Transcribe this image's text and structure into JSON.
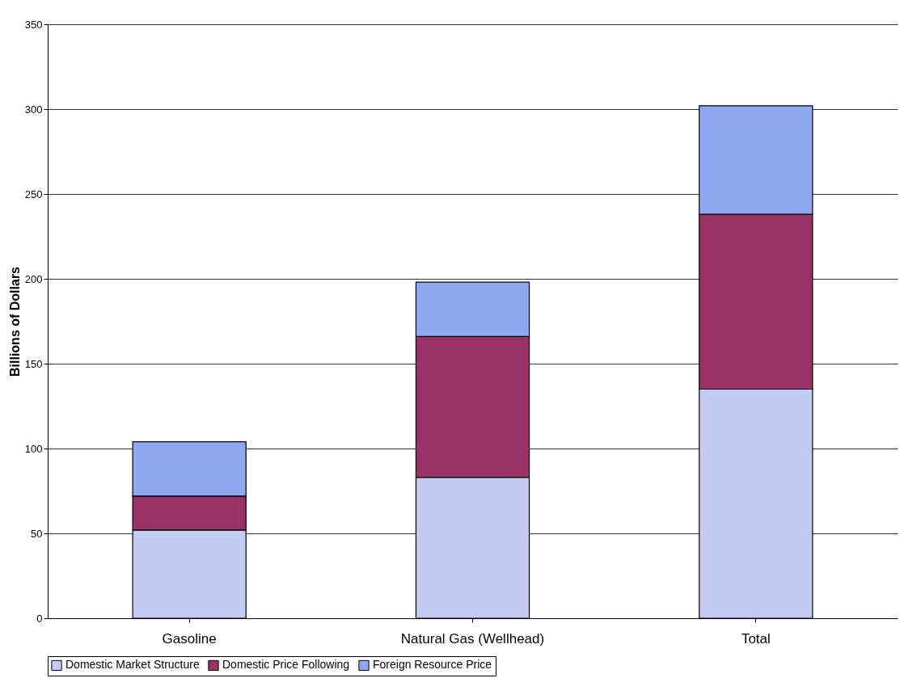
{
  "chart_data": {
    "type": "bar",
    "ylabel": "Billions of Dollars",
    "categories": [
      "Gasoline",
      "Natural Gas (Wellhead)",
      "Total"
    ],
    "stacked": true,
    "series": [
      {
        "name": "Domestic Market Structure",
        "color": "#c3cbf3",
        "values": [
          52,
          83,
          135
        ]
      },
      {
        "name": "Domestic Price Following",
        "color": "#993366",
        "values": [
          20,
          83,
          103
        ]
      },
      {
        "name": "Foreign Resource Price",
        "color": "#8fa8f2",
        "values": [
          32,
          32,
          64
        ]
      }
    ],
    "ylim": [
      0,
      350
    ],
    "yticks": [
      0,
      50,
      100,
      150,
      200,
      250,
      300,
      350
    ],
    "grid": "y",
    "legend": "bottom"
  }
}
